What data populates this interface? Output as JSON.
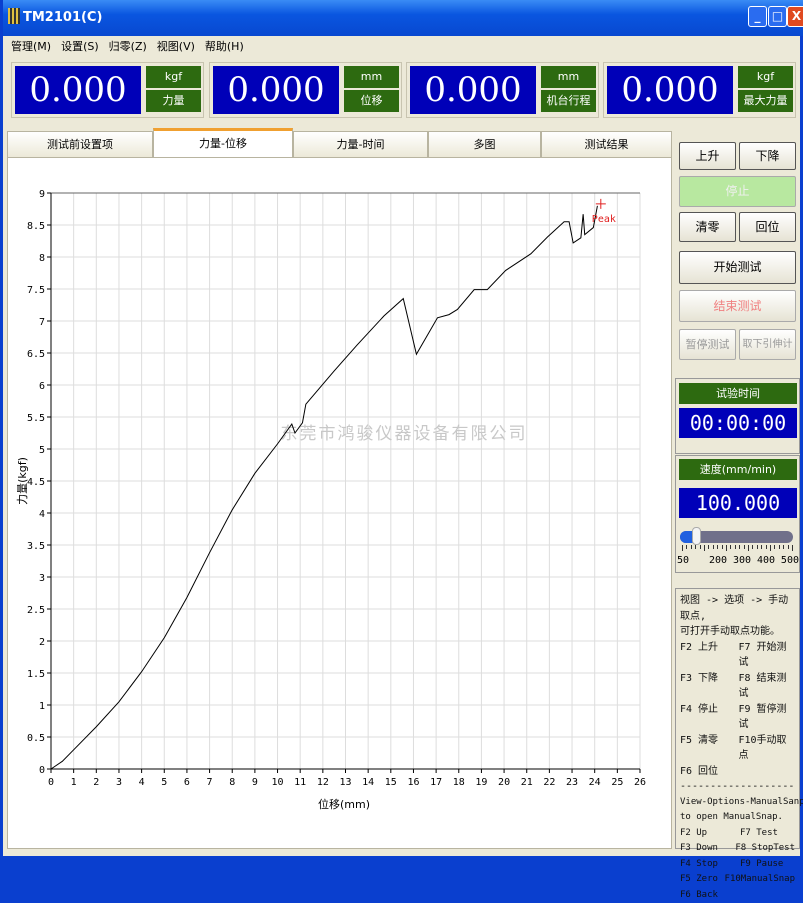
{
  "window": {
    "title": "TM2101(C)",
    "minimize": "_",
    "maximize": "□",
    "close": "X"
  },
  "menu": [
    "管理(M)",
    "设置(S)",
    "归零(Z)",
    "视图(V)",
    "帮助(H)"
  ],
  "displays": [
    {
      "value": "0.000",
      "unit": "kgf",
      "label": "力量"
    },
    {
      "value": "0.000",
      "unit": "mm",
      "label": "位移"
    },
    {
      "value": "0.000",
      "unit": "mm",
      "label": "机台行程"
    },
    {
      "value": "0.000",
      "unit": "kgf",
      "label": "最大力量"
    }
  ],
  "tabs": [
    {
      "label": "测试前设置项"
    },
    {
      "label": "力量-位移",
      "active": true
    },
    {
      "label": "力量-时间"
    },
    {
      "label": "多图"
    },
    {
      "label": "测试结果"
    }
  ],
  "buttons": {
    "up": "上升",
    "down": "下降",
    "stop": "停止",
    "zero": "清零",
    "back": "回位",
    "start": "开始测试",
    "end": "结束测试",
    "pause": "暂停测试",
    "remove_ext": "取下引伸计"
  },
  "timer": {
    "label": "试验时间",
    "value": "00:00:00"
  },
  "speed": {
    "label": "速度(mm/min)",
    "value": "100.000",
    "slider_value": 100,
    "slider_min": 50,
    "slider_max": 500,
    "scale_labels": [
      "50",
      "200",
      "300",
      "400",
      "500"
    ]
  },
  "help": {
    "cn_intro": [
      "视图 -> 选项 -> 手动取点,",
      "可打开手动取点功能。"
    ],
    "cn_keys": [
      [
        "F2 上升",
        "F7 开始测试"
      ],
      [
        "F3 下降",
        "F8 结束测试"
      ],
      [
        "F4 停止",
        "F9 暂停测试"
      ],
      [
        "F5 清零",
        "F10手动取点"
      ],
      [
        "F6 回位",
        ""
      ]
    ],
    "divider": "------------------------",
    "en_intro": [
      "View-Options-ManualSanp,",
      "to open ManualSnap."
    ],
    "en_keys": [
      [
        "F2 Up",
        "F7 Test"
      ],
      [
        "F3 Down",
        "F8 StopTest"
      ],
      [
        "F4 Stop",
        "F9 Pause"
      ],
      [
        "F5 Zero",
        "F10ManualSnap"
      ],
      [
        "F6 Back",
        ""
      ]
    ]
  },
  "watermark": "东莞市鸿骏仪器设备有限公司",
  "chart_data": {
    "type": "line",
    "xlabel": "位移(mm)",
    "ylabel": "力量(kgf)",
    "xlim": [
      0,
      26
    ],
    "ylim": [
      0,
      9
    ],
    "grid": true,
    "xticks": [
      "0",
      "1",
      "2",
      "3",
      "4",
      "5",
      "6",
      "7",
      "8",
      "9",
      "10",
      "11",
      "12",
      "13",
      "14",
      "15",
      "16",
      "17",
      "18",
      "19",
      "20",
      "21",
      "22",
      "23",
      "24",
      "25",
      "26"
    ],
    "yticks": [
      "0",
      "0.5",
      "1",
      "1.5",
      "2",
      "2.5",
      "3",
      "3.5",
      "4",
      "4.5",
      "5",
      "5.5",
      "6",
      "6.5",
      "7",
      "7.5",
      "8",
      "8.5",
      "9"
    ],
    "line_color": "#000000",
    "x": [
      0,
      0.5,
      1,
      2,
      3,
      4,
      5,
      6,
      7,
      8,
      9,
      10,
      10.63,
      10.77,
      11.1,
      11.25,
      12.5,
      13.5,
      14.7,
      15.55,
      16.13,
      17.06,
      17.57,
      17.94,
      18.68,
      19.26,
      20.07,
      21.18,
      21.91,
      22.65,
      22.87,
      23.05,
      23.39,
      23.49,
      23.56,
      23.94,
      24.12
    ],
    "y": [
      0,
      0.12,
      0.3,
      0.66,
      1.05,
      1.52,
      2.05,
      2.68,
      3.38,
      4.05,
      4.62,
      5.08,
      5.39,
      5.25,
      5.41,
      5.7,
      6.22,
      6.62,
      7.08,
      7.35,
      6.48,
      7.05,
      7.1,
      7.18,
      7.49,
      7.49,
      7.79,
      8.05,
      8.31,
      8.55,
      8.55,
      8.22,
      8.3,
      8.67,
      8.35,
      8.46,
      8.8
    ],
    "peak": {
      "label": "Peak",
      "x": 24.27,
      "y": 8.83,
      "color": "#e02020"
    }
  }
}
